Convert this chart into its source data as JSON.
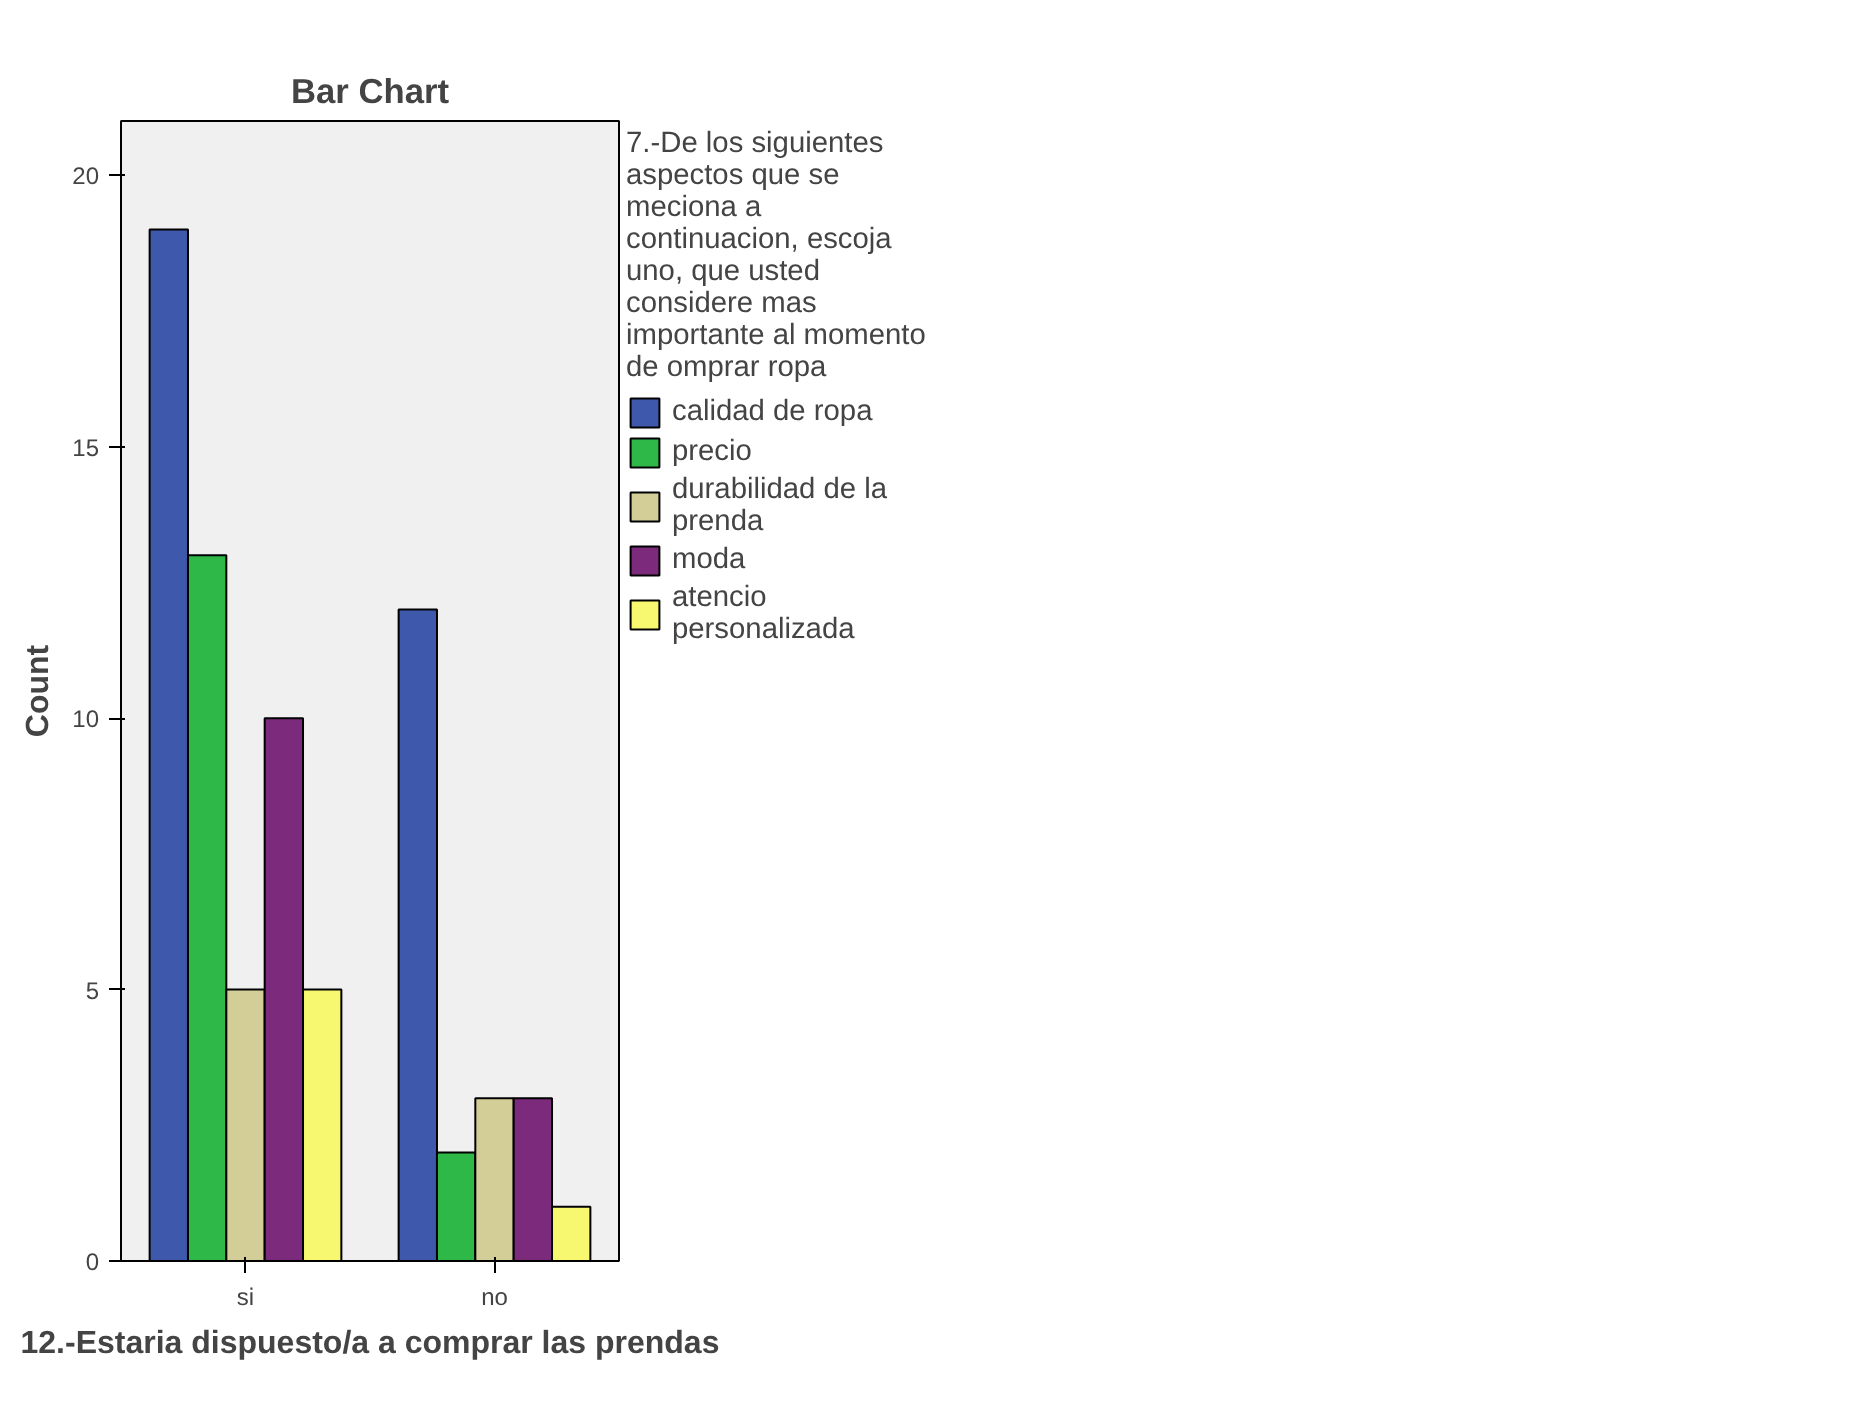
{
  "chart_data": {
    "type": "bar",
    "title": "Bar Chart",
    "xlabel": "12.-Estaria dispuesto/a a comprar las prendas",
    "ylabel": "Count",
    "legend_title": "7.-De los siguientes aspectos que se meciona a continuacion, escoja uno, que usted considere mas importante al momento de omprar ropa",
    "categories": [
      "si",
      "no"
    ],
    "series": [
      {
        "name": "calidad de ropa",
        "color": "#3e58ac",
        "values": [
          19,
          12
        ]
      },
      {
        "name": "precio",
        "color": "#2eb848",
        "values": [
          13,
          2
        ]
      },
      {
        "name": "durabilidad de la prenda",
        "color": "#d3ce97",
        "values": [
          5,
          3
        ]
      },
      {
        "name": "moda",
        "color": "#7c2a7c",
        "values": [
          10,
          3
        ]
      },
      {
        "name": "atencio personalizada",
        "color": "#f8f870",
        "values": [
          5,
          1
        ]
      }
    ],
    "ylim": [
      0,
      21
    ],
    "yticks": [
      0,
      5,
      10,
      15,
      20
    ],
    "grid": false,
    "legend": "right"
  }
}
